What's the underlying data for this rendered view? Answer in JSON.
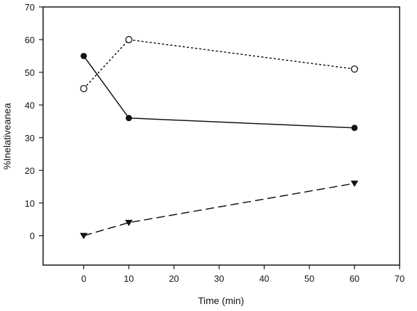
{
  "chart_data": {
    "type": "line",
    "title": "",
    "xlabel": "Time (min)",
    "ylabel": "%Inelativeanea",
    "xlim": [
      -9,
      70
    ],
    "ylim": [
      -9,
      70
    ],
    "xticks": [
      0,
      10,
      20,
      30,
      40,
      50,
      60,
      70
    ],
    "yticks": [
      0,
      10,
      20,
      30,
      40,
      50,
      60,
      70
    ],
    "grid": false,
    "series": [
      {
        "name": "filled circles",
        "marker": "filled-circle",
        "line": "solid",
        "x": [
          0,
          10,
          60
        ],
        "y": [
          55,
          36,
          33
        ]
      },
      {
        "name": "open circles",
        "marker": "open-circle",
        "line": "dotted",
        "x": [
          0,
          10,
          60
        ],
        "y": [
          45,
          60,
          51
        ]
      },
      {
        "name": "filled triangles",
        "marker": "filled-triangle-down",
        "line": "dashed",
        "x": [
          0,
          10,
          60
        ],
        "y": [
          0,
          4,
          16
        ]
      }
    ]
  }
}
